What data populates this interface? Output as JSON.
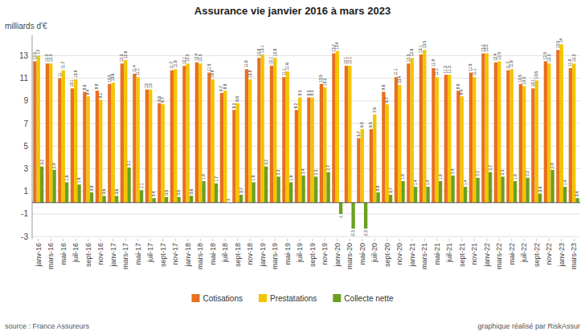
{
  "chart_data": {
    "type": "bar",
    "title": "Assurance vie janvier 2016 à mars 2023",
    "y_label": "milliards d'€",
    "annotations": [
      "source : France Assureurs",
      "graphique réalisé par RiskAssur"
    ],
    "categories": [
      "janv-16",
      "mars-16",
      "mai-16",
      "juil-16",
      "sept-16",
      "nov-16",
      "janv-17",
      "mars-17",
      "mai-17",
      "juil-17",
      "sept-17",
      "nov-17",
      "janv-18",
      "mars-18",
      "mai-18",
      "juil-18",
      "sept-18",
      "nov-18",
      "janv-19",
      "mars-19",
      "mai-19",
      "juil-19",
      "sept-19",
      "nov-19",
      "janv-20",
      "mars-20",
      "mai-20",
      "juil-20",
      "sept-20",
      "nov-20",
      "janv-21",
      "mars-21",
      "mai-21",
      "juil-21",
      "sept-21",
      "nov-21",
      "janv-22",
      "mars-22",
      "mai-22",
      "juil-22",
      "sept-22",
      "nov-22",
      "janv-23",
      "mars-23"
    ],
    "series": [
      {
        "name": "Cotisations",
        "color": "#E87020",
        "values": [
          12.5,
          12.3,
          11.0,
          10.1,
          9.8,
          9.9,
          10.5,
          12.3,
          11.4,
          10.0,
          8.8,
          11.7,
          12.1,
          12.4,
          11.5,
          9.7,
          8.2,
          11.8,
          12.8,
          12.1,
          11.1,
          8.2,
          9.3,
          10.5,
          13.2,
          12.1,
          5.7,
          6.5,
          9.8,
          11.1,
          12.3,
          13.1,
          11.9,
          11.3,
          9.9,
          11.5,
          13.2,
          12.4,
          11.7,
          10.5,
          10.1,
          12.5,
          13.5,
          11.9
        ]
      },
      {
        "name": "Prestatations",
        "color": "#F5C400",
        "values": [
          13.0,
          12.3,
          11.7,
          10.9,
          9.4,
          9.1,
          10.6,
          12.6,
          11.1,
          10.0,
          8.7,
          11.8,
          12.3,
          12.3,
          10.9,
          9.9,
          8.8,
          10.9,
          13.1,
          12.8,
          11.6,
          9.3,
          9.3,
          10.2,
          13.4,
          12.1,
          6.5,
          7.8,
          8.7,
          10.4,
          12.8,
          13.5,
          11.1,
          11.3,
          9.4,
          11.1,
          13.2,
          12.5,
          11.8,
          10.3,
          10.8,
          12.3,
          14.0,
          12.3
        ]
      },
      {
        "name": "Collecte nette",
        "color": "#6AA020",
        "values": [
          3.2,
          2.9,
          1.8,
          1.6,
          0.9,
          0.6,
          0.6,
          3.1,
          1.1,
          0.4,
          0.5,
          0.5,
          0.6,
          1.9,
          1.7,
          0.0,
          0.7,
          1.8,
          3.2,
          2.3,
          1.8,
          2.4,
          2.3,
          2.7,
          -1.0,
          -2.3,
          -2.3,
          0.9,
          0.7,
          1.9,
          1.4,
          1.4,
          1.9,
          2.4,
          1.4,
          2.2,
          2.7,
          2.3,
          1.9,
          2.2,
          0.8,
          2.9,
          1.4,
          0.4
        ]
      }
    ],
    "ylim": [
      -3.2,
      14.8
    ],
    "yticks": [
      -3,
      -1,
      1,
      3,
      5,
      7,
      9,
      11,
      13
    ],
    "grid": true,
    "legend": "bottom",
    "data_labels": true
  }
}
